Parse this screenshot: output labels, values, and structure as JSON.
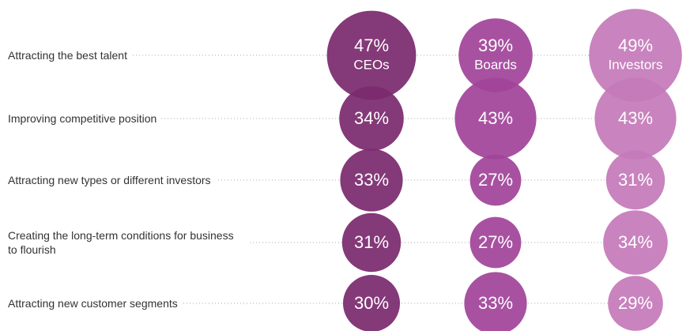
{
  "chart_data": {
    "type": "bubble-matrix",
    "categories": [
      "Attracting the best talent",
      "Improving competitive position",
      "Attracting new types or different investors",
      "Creating the long-term conditions for business to flourish",
      "Attracting new customer segments"
    ],
    "series": [
      {
        "name": "CEOs",
        "color": "#7b2a6e",
        "values": [
          47,
          34,
          33,
          31,
          30
        ],
        "value_labels": [
          "47%",
          "34%",
          "33%",
          "31%",
          "30%"
        ]
      },
      {
        "name": "Boards",
        "color": "#a1449a",
        "values": [
          39,
          43,
          27,
          27,
          33
        ],
        "value_labels": [
          "39%",
          "43%",
          "27%",
          "27%",
          "33%"
        ]
      },
      {
        "name": "Investors",
        "color": "#c57ab9",
        "values": [
          49,
          43,
          31,
          34,
          29
        ],
        "value_labels": [
          "49%",
          "43%",
          "31%",
          "34%",
          "29%"
        ]
      }
    ]
  }
}
